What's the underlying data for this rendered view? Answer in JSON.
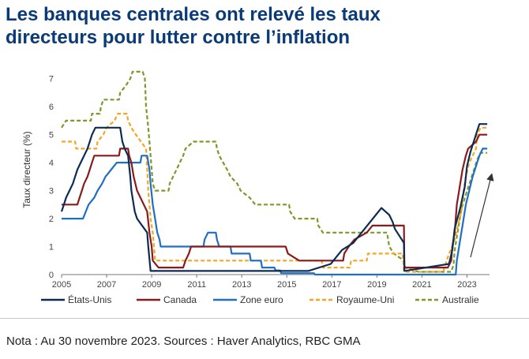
{
  "header": {
    "title_line1": "Les banques centrales ont relevé les taux",
    "title_line2": "directeurs pour lutter contre l’inflation"
  },
  "footer": {
    "note": "Nota : Au 30 novembre 2023. Sources : Haver Analytics, RBC GMA"
  },
  "chart_data": {
    "type": "line",
    "title": "Les banques centrales ont relevé les taux directeurs pour lutter contre l’inflation",
    "xlabel": "",
    "ylabel": "Taux directeur (%)",
    "xlim": [
      2005,
      2024
    ],
    "ylim": [
      0,
      7.5
    ],
    "x_ticks": [
      2005,
      2007,
      2009,
      2011,
      2013,
      2015,
      2017,
      2019,
      2021,
      2023
    ],
    "y_ticks": [
      0,
      1,
      2,
      3,
      4,
      5,
      6,
      7
    ],
    "grid": false,
    "legend_position": "bottom",
    "annotation": "upward-arrow",
    "series": [
      {
        "name": "États-Unis",
        "color": "#0d2c54",
        "dash": "solid",
        "points": [
          [
            2005,
            2.25
          ],
          [
            2005.1,
            2.5
          ],
          [
            2005.2,
            2.75
          ],
          [
            2005.35,
            3.0
          ],
          [
            2005.5,
            3.25
          ],
          [
            2005.6,
            3.5
          ],
          [
            2005.7,
            3.75
          ],
          [
            2005.85,
            4.0
          ],
          [
            2006.0,
            4.25
          ],
          [
            2006.15,
            4.5
          ],
          [
            2006.25,
            4.75
          ],
          [
            2006.35,
            5.0
          ],
          [
            2006.5,
            5.25
          ],
          [
            2007.6,
            5.25
          ],
          [
            2007.7,
            4.75
          ],
          [
            2007.8,
            4.5
          ],
          [
            2007.95,
            4.25
          ],
          [
            2008.05,
            3.5
          ],
          [
            2008.1,
            3.0
          ],
          [
            2008.25,
            2.25
          ],
          [
            2008.35,
            2.0
          ],
          [
            2008.8,
            1.5
          ],
          [
            2008.85,
            1.0
          ],
          [
            2008.95,
            0.13
          ],
          [
            2015.95,
            0.13
          ],
          [
            2016.95,
            0.38
          ],
          [
            2017.2,
            0.63
          ],
          [
            2017.45,
            0.88
          ],
          [
            2017.95,
            1.13
          ],
          [
            2018.2,
            1.38
          ],
          [
            2018.45,
            1.63
          ],
          [
            2018.7,
            1.88
          ],
          [
            2018.95,
            2.13
          ],
          [
            2019.2,
            2.38
          ],
          [
            2019.55,
            2.13
          ],
          [
            2019.7,
            1.88
          ],
          [
            2019.8,
            1.63
          ],
          [
            2020.2,
            1.13
          ],
          [
            2020.22,
            0.13
          ],
          [
            2022.2,
            0.38
          ],
          [
            2022.35,
            0.88
          ],
          [
            2022.45,
            1.63
          ],
          [
            2022.7,
            2.38
          ],
          [
            2022.9,
            3.13
          ],
          [
            2023.0,
            3.88
          ],
          [
            2023.15,
            4.38
          ],
          [
            2023.25,
            4.63
          ],
          [
            2023.35,
            4.88
          ],
          [
            2023.45,
            5.13
          ],
          [
            2023.55,
            5.38
          ],
          [
            2023.9,
            5.38
          ]
        ]
      },
      {
        "name": "Canada",
        "color": "#8b1a1a",
        "dash": "solid",
        "points": [
          [
            2005,
            2.5
          ],
          [
            2005.7,
            2.5
          ],
          [
            2005.8,
            2.75
          ],
          [
            2005.9,
            3.0
          ],
          [
            2006.0,
            3.25
          ],
          [
            2006.15,
            3.5
          ],
          [
            2006.25,
            3.75
          ],
          [
            2006.35,
            4.0
          ],
          [
            2006.45,
            4.25
          ],
          [
            2007.55,
            4.25
          ],
          [
            2007.6,
            4.5
          ],
          [
            2007.95,
            4.5
          ],
          [
            2008.0,
            4.25
          ],
          [
            2008.1,
            4.0
          ],
          [
            2008.2,
            3.5
          ],
          [
            2008.35,
            3.0
          ],
          [
            2008.8,
            2.25
          ],
          [
            2008.9,
            1.5
          ],
          [
            2009.0,
            1.0
          ],
          [
            2009.05,
            0.5
          ],
          [
            2009.3,
            0.25
          ],
          [
            2010.4,
            0.25
          ],
          [
            2010.5,
            0.5
          ],
          [
            2010.65,
            0.75
          ],
          [
            2010.75,
            1.0
          ],
          [
            2014.95,
            1.0
          ],
          [
            2015.05,
            0.75
          ],
          [
            2015.55,
            0.5
          ],
          [
            2017.5,
            0.5
          ],
          [
            2017.55,
            0.75
          ],
          [
            2017.75,
            1.0
          ],
          [
            2018.0,
            1.25
          ],
          [
            2018.55,
            1.5
          ],
          [
            2018.8,
            1.75
          ],
          [
            2020.2,
            1.75
          ],
          [
            2020.22,
            0.25
          ],
          [
            2022.15,
            0.25
          ],
          [
            2022.3,
            0.5
          ],
          [
            2022.35,
            1.0
          ],
          [
            2022.45,
            1.5
          ],
          [
            2022.55,
            2.5
          ],
          [
            2022.7,
            3.25
          ],
          [
            2022.8,
            3.75
          ],
          [
            2022.95,
            4.25
          ],
          [
            2023.05,
            4.5
          ],
          [
            2023.4,
            4.75
          ],
          [
            2023.55,
            5.0
          ],
          [
            2023.9,
            5.0
          ]
        ]
      },
      {
        "name": "Zone euro",
        "color": "#1f6fc4",
        "dash": "solid",
        "points": [
          [
            2005,
            2.0
          ],
          [
            2005.95,
            2.0
          ],
          [
            2006.2,
            2.5
          ],
          [
            2006.45,
            2.75
          ],
          [
            2006.6,
            3.0
          ],
          [
            2006.8,
            3.25
          ],
          [
            2006.95,
            3.5
          ],
          [
            2007.2,
            3.75
          ],
          [
            2007.45,
            4.0
          ],
          [
            2008.5,
            4.0
          ],
          [
            2008.55,
            4.25
          ],
          [
            2008.8,
            4.25
          ],
          [
            2008.9,
            3.75
          ],
          [
            2008.95,
            3.25
          ],
          [
            2009.05,
            2.5
          ],
          [
            2009.15,
            2.0
          ],
          [
            2009.25,
            1.5
          ],
          [
            2009.35,
            1.25
          ],
          [
            2009.4,
            1.0
          ],
          [
            2011.3,
            1.0
          ],
          [
            2011.35,
            1.25
          ],
          [
            2011.5,
            1.5
          ],
          [
            2011.85,
            1.5
          ],
          [
            2011.9,
            1.25
          ],
          [
            2012.0,
            1.0
          ],
          [
            2012.5,
            1.0
          ],
          [
            2012.55,
            0.75
          ],
          [
            2013.35,
            0.75
          ],
          [
            2013.4,
            0.5
          ],
          [
            2013.85,
            0.5
          ],
          [
            2013.9,
            0.25
          ],
          [
            2014.45,
            0.25
          ],
          [
            2014.5,
            0.15
          ],
          [
            2014.7,
            0.15
          ],
          [
            2014.75,
            0.05
          ],
          [
            2016.2,
            0.05
          ],
          [
            2016.25,
            0.0
          ],
          [
            2022.5,
            0.0
          ],
          [
            2022.55,
            0.5
          ],
          [
            2022.7,
            1.25
          ],
          [
            2022.85,
            2.0
          ],
          [
            2022.95,
            2.5
          ],
          [
            2023.1,
            3.0
          ],
          [
            2023.25,
            3.5
          ],
          [
            2023.35,
            3.75
          ],
          [
            2023.45,
            4.0
          ],
          [
            2023.55,
            4.25
          ],
          [
            2023.7,
            4.5
          ],
          [
            2023.9,
            4.5
          ]
        ]
      },
      {
        "name": "Royaume-Uni",
        "color": "#f5a623",
        "dash": "dashed",
        "points": [
          [
            2005,
            4.75
          ],
          [
            2005.6,
            4.75
          ],
          [
            2005.65,
            4.5
          ],
          [
            2006.55,
            4.5
          ],
          [
            2006.6,
            4.75
          ],
          [
            2006.85,
            5.0
          ],
          [
            2007.0,
            5.25
          ],
          [
            2007.35,
            5.5
          ],
          [
            2007.5,
            5.75
          ],
          [
            2007.9,
            5.75
          ],
          [
            2007.95,
            5.5
          ],
          [
            2008.1,
            5.25
          ],
          [
            2008.3,
            5.0
          ],
          [
            2008.75,
            4.5
          ],
          [
            2008.85,
            3.0
          ],
          [
            2008.95,
            2.0
          ],
          [
            2009.05,
            1.5
          ],
          [
            2009.1,
            1.0
          ],
          [
            2009.15,
            0.5
          ],
          [
            2016.55,
            0.5
          ],
          [
            2016.6,
            0.25
          ],
          [
            2017.8,
            0.25
          ],
          [
            2017.85,
            0.5
          ],
          [
            2018.55,
            0.5
          ],
          [
            2018.6,
            0.75
          ],
          [
            2020.15,
            0.75
          ],
          [
            2020.2,
            0.1
          ],
          [
            2021.95,
            0.1
          ],
          [
            2022.0,
            0.25
          ],
          [
            2022.1,
            0.5
          ],
          [
            2022.2,
            0.75
          ],
          [
            2022.35,
            1.0
          ],
          [
            2022.45,
            1.25
          ],
          [
            2022.6,
            1.75
          ],
          [
            2022.75,
            2.25
          ],
          [
            2022.85,
            3.0
          ],
          [
            2022.95,
            3.5
          ],
          [
            2023.1,
            4.0
          ],
          [
            2023.25,
            4.25
          ],
          [
            2023.4,
            4.5
          ],
          [
            2023.45,
            5.0
          ],
          [
            2023.6,
            5.25
          ],
          [
            2023.9,
            5.25
          ]
        ]
      },
      {
        "name": "Australie",
        "color": "#7a9a2a",
        "dash": "dashed",
        "points": [
          [
            2005,
            5.25
          ],
          [
            2005.2,
            5.5
          ],
          [
            2006.3,
            5.5
          ],
          [
            2006.35,
            5.75
          ],
          [
            2006.7,
            5.75
          ],
          [
            2006.75,
            6.0
          ],
          [
            2006.85,
            6.25
          ],
          [
            2007.55,
            6.25
          ],
          [
            2007.6,
            6.5
          ],
          [
            2007.85,
            6.75
          ],
          [
            2008.05,
            7.0
          ],
          [
            2008.15,
            7.25
          ],
          [
            2008.6,
            7.25
          ],
          [
            2008.7,
            7.0
          ],
          [
            2008.75,
            6.0
          ],
          [
            2008.85,
            5.25
          ],
          [
            2008.95,
            4.25
          ],
          [
            2009.05,
            3.25
          ],
          [
            2009.15,
            3.0
          ],
          [
            2009.75,
            3.0
          ],
          [
            2009.8,
            3.25
          ],
          [
            2009.95,
            3.5
          ],
          [
            2010.1,
            3.75
          ],
          [
            2010.25,
            4.0
          ],
          [
            2010.4,
            4.25
          ],
          [
            2010.5,
            4.5
          ],
          [
            2010.85,
            4.75
          ],
          [
            2011.85,
            4.75
          ],
          [
            2011.9,
            4.5
          ],
          [
            2012.0,
            4.25
          ],
          [
            2012.35,
            3.75
          ],
          [
            2012.5,
            3.5
          ],
          [
            2012.8,
            3.25
          ],
          [
            2012.95,
            3.0
          ],
          [
            2013.35,
            2.75
          ],
          [
            2013.6,
            2.5
          ],
          [
            2015.1,
            2.5
          ],
          [
            2015.15,
            2.25
          ],
          [
            2015.35,
            2.0
          ],
          [
            2016.35,
            2.0
          ],
          [
            2016.4,
            1.75
          ],
          [
            2016.6,
            1.5
          ],
          [
            2019.45,
            1.5
          ],
          [
            2019.5,
            1.25
          ],
          [
            2019.55,
            1.0
          ],
          [
            2019.75,
            0.75
          ],
          [
            2020.2,
            0.5
          ],
          [
            2020.25,
            0.25
          ],
          [
            2020.85,
            0.1
          ],
          [
            2022.3,
            0.1
          ],
          [
            2022.4,
            0.35
          ],
          [
            2022.45,
            0.85
          ],
          [
            2022.55,
            1.35
          ],
          [
            2022.65,
            1.85
          ],
          [
            2022.75,
            2.35
          ],
          [
            2022.85,
            2.6
          ],
          [
            2022.95,
            2.85
          ],
          [
            2023.05,
            3.1
          ],
          [
            2023.15,
            3.35
          ],
          [
            2023.25,
            3.6
          ],
          [
            2023.35,
            3.85
          ],
          [
            2023.45,
            4.1
          ],
          [
            2023.6,
            4.35
          ],
          [
            2023.9,
            4.35
          ]
        ]
      }
    ]
  }
}
